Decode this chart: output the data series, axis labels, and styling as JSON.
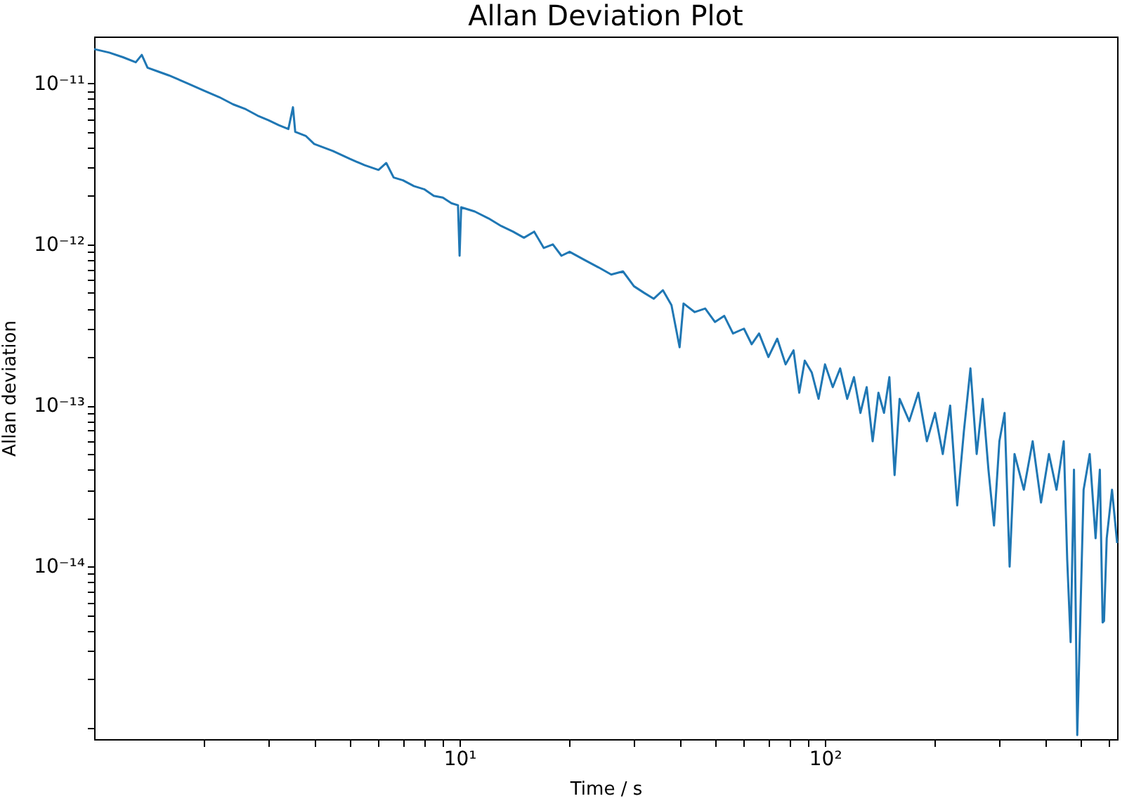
{
  "chart_data": {
    "type": "line",
    "title": "Allan Deviation Plot",
    "xlabel": "Time / s",
    "ylabel": "Allan deviation",
    "log": "xy",
    "grid": false,
    "marker": "none",
    "line_style": "solid",
    "xlim": [
      1,
      630
    ],
    "ylim": [
      8.5e-16,
      1.95e-11
    ],
    "xticks": [
      {
        "value": 2,
        "label": null
      },
      {
        "value": 3,
        "label": null
      },
      {
        "value": 4,
        "label": null
      },
      {
        "value": 5,
        "label": null
      },
      {
        "value": 6,
        "label": null
      },
      {
        "value": 7,
        "label": null
      },
      {
        "value": 8,
        "label": null
      },
      {
        "value": 9,
        "label": null
      },
      {
        "value": 10,
        "label": "10¹"
      },
      {
        "value": 20,
        "label": null
      },
      {
        "value": 30,
        "label": null
      },
      {
        "value": 40,
        "label": null
      },
      {
        "value": 50,
        "label": null
      },
      {
        "value": 60,
        "label": null
      },
      {
        "value": 70,
        "label": null
      },
      {
        "value": 80,
        "label": null
      },
      {
        "value": 90,
        "label": null
      },
      {
        "value": 100,
        "label": "10²"
      },
      {
        "value": 200,
        "label": null
      },
      {
        "value": 300,
        "label": null
      },
      {
        "value": 400,
        "label": null
      },
      {
        "value": 500,
        "label": null
      },
      {
        "value": 600,
        "label": null
      }
    ],
    "yticks": [
      {
        "value": 1e-15,
        "label": null
      },
      {
        "value": 2e-15,
        "label": null
      },
      {
        "value": 3e-15,
        "label": null
      },
      {
        "value": 4e-15,
        "label": null
      },
      {
        "value": 5e-15,
        "label": null
      },
      {
        "value": 6e-15,
        "label": null
      },
      {
        "value": 7e-15,
        "label": null
      },
      {
        "value": 8e-15,
        "label": null
      },
      {
        "value": 9e-15,
        "label": null
      },
      {
        "value": 1e-14,
        "label": "10⁻¹⁴"
      },
      {
        "value": 2e-14,
        "label": null
      },
      {
        "value": 3e-14,
        "label": null
      },
      {
        "value": 4e-14,
        "label": null
      },
      {
        "value": 5e-14,
        "label": null
      },
      {
        "value": 6e-14,
        "label": null
      },
      {
        "value": 7e-14,
        "label": null
      },
      {
        "value": 8e-14,
        "label": null
      },
      {
        "value": 9e-14,
        "label": null
      },
      {
        "value": 1e-13,
        "label": "10⁻¹³"
      },
      {
        "value": 2e-13,
        "label": null
      },
      {
        "value": 3e-13,
        "label": null
      },
      {
        "value": 4e-13,
        "label": null
      },
      {
        "value": 5e-13,
        "label": null
      },
      {
        "value": 6e-13,
        "label": null
      },
      {
        "value": 7e-13,
        "label": null
      },
      {
        "value": 8e-13,
        "label": null
      },
      {
        "value": 9e-13,
        "label": null
      },
      {
        "value": 1e-12,
        "label": "10⁻¹²"
      },
      {
        "value": 2e-12,
        "label": null
      },
      {
        "value": 3e-12,
        "label": null
      },
      {
        "value": 4e-12,
        "label": null
      },
      {
        "value": 5e-12,
        "label": null
      },
      {
        "value": 6e-12,
        "label": null
      },
      {
        "value": 7e-12,
        "label": null
      },
      {
        "value": 8e-12,
        "label": null
      },
      {
        "value": 9e-12,
        "label": null
      },
      {
        "value": 1e-11,
        "label": "10⁻¹¹"
      }
    ],
    "x": [
      1,
      1.1,
      1.2,
      1.3,
      1.35,
      1.4,
      1.5,
      1.6,
      1.8,
      2.0,
      2.2,
      2.4,
      2.6,
      2.8,
      3.0,
      3.2,
      3.4,
      3.5,
      3.55,
      3.8,
      4.0,
      4.5,
      5.0,
      5.5,
      6.0,
      6.3,
      6.6,
      7.0,
      7.5,
      8.0,
      8.5,
      9.0,
      9.5,
      9.9,
      10.0,
      10.1,
      11,
      12,
      13,
      14,
      15,
      16,
      17,
      18,
      19,
      20,
      22,
      24,
      26,
      28,
      30,
      32,
      34,
      36,
      38,
      40,
      41,
      44,
      47,
      50,
      53,
      56,
      60,
      63,
      66,
      70,
      74,
      78,
      82,
      85,
      88,
      92,
      96,
      100,
      105,
      110,
      115,
      120,
      125,
      130,
      135,
      140,
      145,
      150,
      155,
      160,
      170,
      180,
      190,
      200,
      210,
      220,
      230,
      240,
      250,
      260,
      270,
      280,
      290,
      300,
      310,
      320,
      330,
      350,
      370,
      390,
      410,
      430,
      450,
      460,
      470,
      480,
      490,
      510,
      530,
      550,
      565,
      575,
      580,
      590,
      610,
      630
    ],
    "series": [
      {
        "color": "#1f77b4",
        "values": [
          1.63e-11,
          1.55e-11,
          1.45e-11,
          1.35e-11,
          1.5e-11,
          1.25e-11,
          1.18e-11,
          1.12e-11,
          1e-11,
          9e-12,
          8.2e-12,
          7.4e-12,
          6.9e-12,
          6.3e-12,
          5.9e-12,
          5.5e-12,
          5.2e-12,
          7.1e-12,
          5e-12,
          4.7e-12,
          4.2e-12,
          3.8e-12,
          3.4e-12,
          3.1e-12,
          2.9e-12,
          3.2e-12,
          2.6e-12,
          2.5e-12,
          2.3e-12,
          2.2e-12,
          2e-12,
          1.95e-12,
          1.8e-12,
          1.75e-12,
          8.5e-13,
          1.7e-12,
          1.6e-12,
          1.45e-12,
          1.3e-12,
          1.2e-12,
          1.1e-12,
          1.2e-12,
          9.5e-13,
          1e-12,
          8.5e-13,
          9e-13,
          8e-13,
          7.2e-13,
          6.5e-13,
          6.8e-13,
          5.5e-13,
          5e-13,
          4.6e-13,
          5.2e-13,
          4.2e-13,
          2.3e-13,
          4.3e-13,
          3.8e-13,
          4e-13,
          3.3e-13,
          3.6e-13,
          2.8e-13,
          3e-13,
          2.4e-13,
          2.8e-13,
          2e-13,
          2.6e-13,
          1.8e-13,
          2.2e-13,
          1.2e-13,
          1.9e-13,
          1.6e-13,
          1.1e-13,
          1.8e-13,
          1.3e-13,
          1.7e-13,
          1.1e-13,
          1.5e-13,
          9e-14,
          1.3e-13,
          6e-14,
          1.2e-13,
          9e-14,
          1.5e-13,
          3.7e-14,
          1.1e-13,
          8e-14,
          1.2e-13,
          6e-14,
          9e-14,
          5e-14,
          1e-13,
          2.4e-14,
          7e-14,
          1.7e-13,
          5e-14,
          1.1e-13,
          4e-14,
          1.8e-14,
          6e-14,
          9e-14,
          1e-14,
          5e-14,
          3e-14,
          6e-14,
          2.5e-14,
          5e-14,
          3e-14,
          6e-14,
          1.1e-14,
          3.4e-15,
          4e-14,
          9e-16,
          3e-14,
          5e-14,
          1.5e-14,
          4e-14,
          4.5e-15,
          4.6e-15,
          1.5e-14,
          3e-14,
          1.4e-14
        ]
      }
    ]
  }
}
